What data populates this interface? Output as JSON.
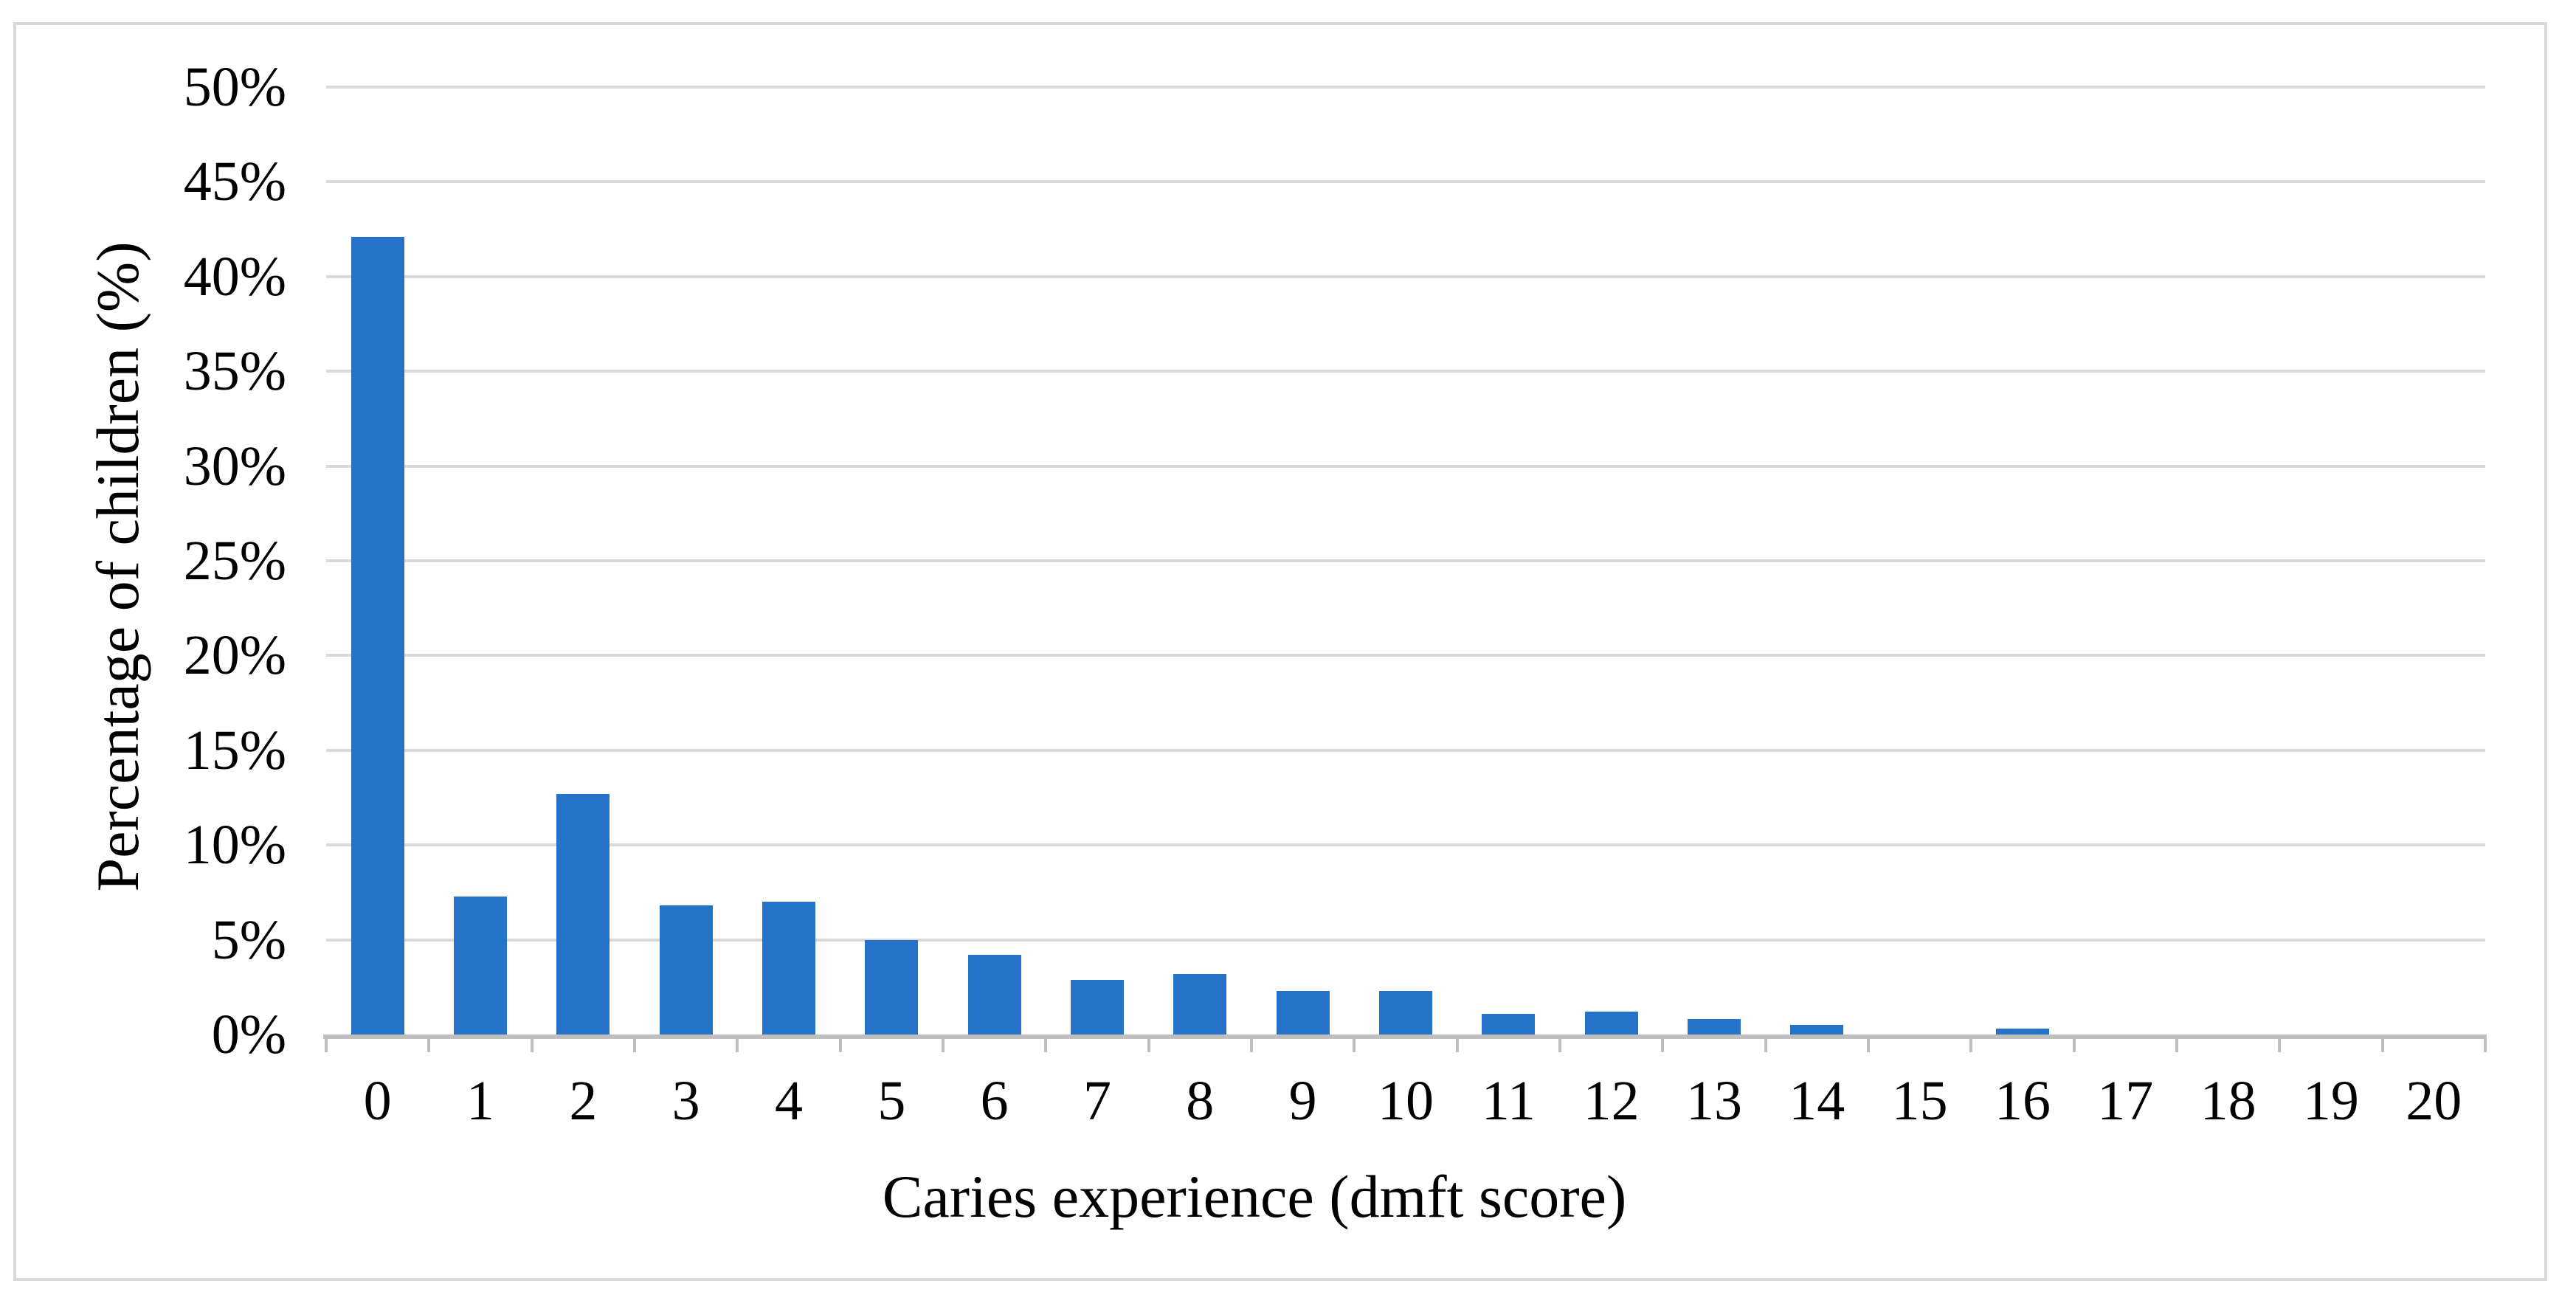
{
  "chart_data": {
    "type": "bar",
    "title": "",
    "xlabel": "Caries experience (dmft score)",
    "ylabel": "Percentage of children (%)",
    "categories": [
      "0",
      "1",
      "2",
      "3",
      "4",
      "5",
      "6",
      "7",
      "8",
      "9",
      "10",
      "11",
      "12",
      "13",
      "14",
      "15",
      "16",
      "17",
      "18",
      "19",
      "20"
    ],
    "values": [
      42.1,
      7.3,
      12.7,
      6.8,
      7.0,
      5.0,
      4.2,
      2.9,
      3.2,
      2.3,
      2.3,
      1.1,
      1.2,
      0.8,
      0.5,
      0,
      0.3,
      0,
      0,
      0,
      0
    ],
    "ylim": [
      0,
      50
    ],
    "ytick_step": 5,
    "ytick_labels": [
      "0%",
      "5%",
      "10%",
      "15%",
      "20%",
      "25%",
      "30%",
      "35%",
      "40%",
      "45%",
      "50%"
    ],
    "grid": true,
    "legend": "none",
    "bar_color": "#2573C8",
    "gridline_color": "#D9D9D9",
    "axis_line_color": "#BFBFBF",
    "frame_border_color": "#D9D9D9",
    "text_color": "#000000"
  }
}
